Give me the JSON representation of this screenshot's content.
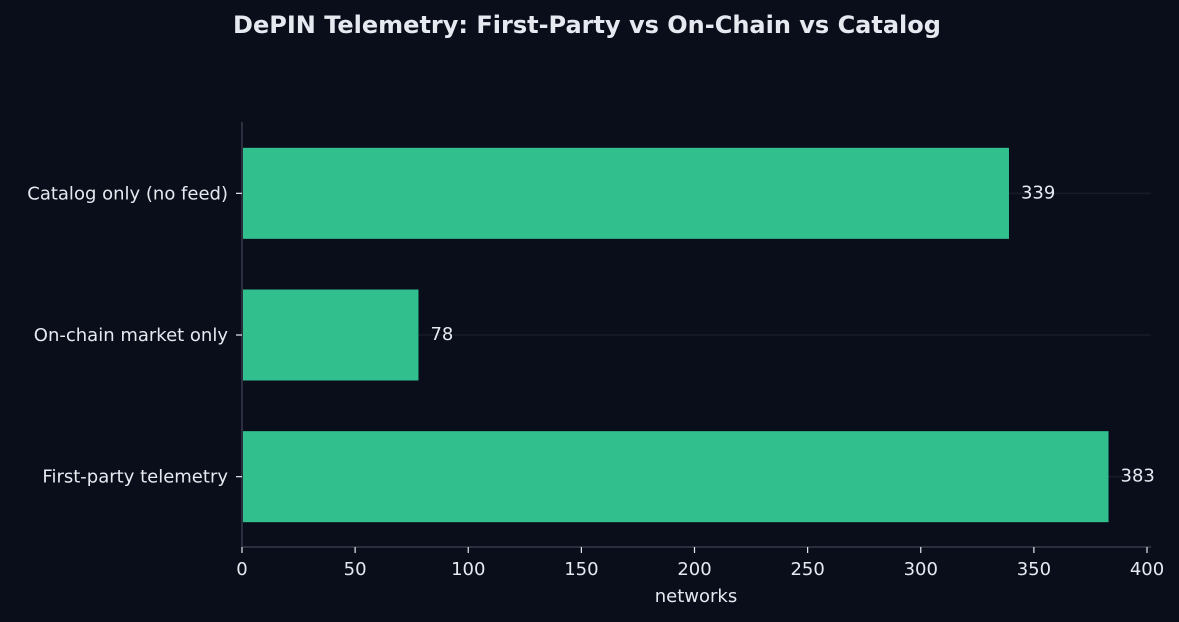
{
  "colors": {
    "background": "#0a0e1a",
    "bar": "#31bf8d",
    "text": "#e6e9f0",
    "axis": "#2a2f40",
    "grid": "#171c2a"
  },
  "chart_data": {
    "type": "bar",
    "orientation": "horizontal",
    "title": "DePIN Telemetry: First-Party vs On-Chain vs Catalog",
    "xlabel": "networks",
    "ylabel": "",
    "xlim": [
      0,
      400
    ],
    "xticks": [
      0,
      50,
      100,
      150,
      200,
      250,
      300,
      350,
      400
    ],
    "categories": [
      "Catalog only (no feed)",
      "On-chain market only",
      "First-party telemetry"
    ],
    "values": [
      339,
      78,
      383
    ],
    "data_labels": [
      "339",
      "78",
      "383"
    ],
    "grid": "horizontal",
    "legend": "none"
  }
}
